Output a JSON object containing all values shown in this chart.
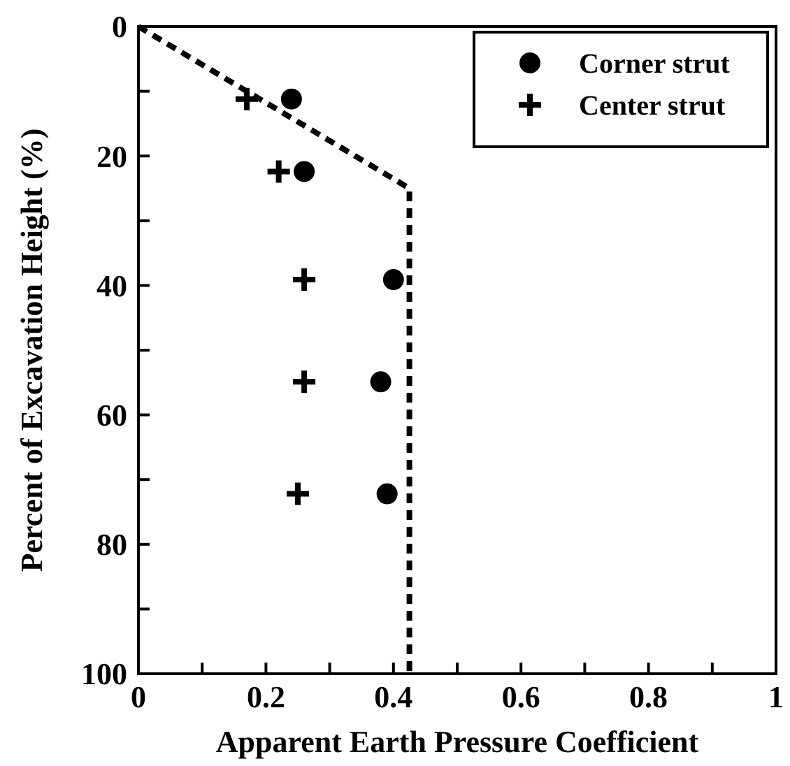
{
  "chart_data": {
    "type": "scatter",
    "xlabel": "Apparent Earth Pressure Coefficient",
    "ylabel": "Percent of Excavation Height (%)",
    "xlim": [
      0,
      1
    ],
    "ylim": [
      100,
      0
    ],
    "xticks": [
      0,
      {
        "value": 0.1,
        "label": null
      },
      0.2,
      {
        "value": 0.3,
        "label": null
      },
      0.4,
      {
        "value": 0.5,
        "label": null
      },
      0.6,
      {
        "value": 0.7,
        "label": null
      },
      0.8,
      {
        "value": 0.9,
        "label": null
      },
      1
    ],
    "yticks": [
      0,
      {
        "value": 10,
        "label": null
      },
      20,
      {
        "value": 30,
        "label": null
      },
      40,
      {
        "value": 50,
        "label": null
      },
      60,
      {
        "value": 70,
        "label": null
      },
      80,
      {
        "value": 90,
        "label": null
      },
      100
    ],
    "grid": false,
    "legend": "top right",
    "series": [
      {
        "name": "Corner strut",
        "marker": "circle",
        "color": "#000000",
        "x": [
          0.24,
          0.26,
          0.4,
          0.38,
          0.39
        ],
        "values": [
          11.2,
          22.4,
          39.1,
          54.9,
          72.2
        ]
      },
      {
        "name": "Center strut",
        "marker": "cross",
        "color": "#000000",
        "x": [
          0.17,
          0.22,
          0.26,
          0.26,
          0.25
        ],
        "values": [
          11.2,
          22.4,
          39.1,
          54.9,
          72.2
        ]
      },
      {
        "type": "line",
        "marker": "none",
        "line_style": "dashed",
        "color": "#000000",
        "x": [
          0,
          0.425,
          0.425
        ],
        "values": [
          0,
          25,
          100
        ]
      }
    ]
  }
}
